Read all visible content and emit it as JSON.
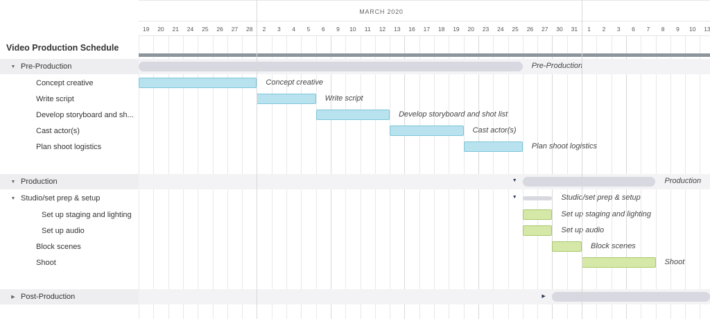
{
  "project": {
    "title": "Video Production Schedule"
  },
  "timeline": {
    "month_label": "MARCH 2020",
    "days": [
      "19",
      "20",
      "21",
      "24",
      "25",
      "26",
      "27",
      "28",
      "2",
      "3",
      "4",
      "5",
      "6",
      "9",
      "10",
      "11",
      "12",
      "13",
      "16",
      "17",
      "18",
      "19",
      "20",
      "23",
      "24",
      "25",
      "26",
      "27",
      "30",
      "31",
      "1",
      "2",
      "3",
      "6",
      "7",
      "8",
      "9",
      "10",
      "13"
    ]
  },
  "rows": [
    {
      "label": "Pre-Production",
      "kind": "group",
      "toggle": "▼",
      "bar_label": "Pre-Production",
      "start": 0,
      "end": 26
    },
    {
      "label": "Concept creative",
      "kind": "task",
      "color": "blue",
      "bar_label": "Concept creative",
      "start": 0,
      "end": 8
    },
    {
      "label": "Write script",
      "kind": "task",
      "color": "blue",
      "bar_label": "Write script",
      "start": 8,
      "end": 12
    },
    {
      "label": "Develop storyboard and sh...",
      "kind": "task",
      "color": "blue",
      "bar_label": "Develop storyboard and shot list",
      "start": 12,
      "end": 17
    },
    {
      "label": "Cast actor(s)",
      "kind": "task",
      "color": "blue",
      "bar_label": "Cast actor(s)",
      "start": 17,
      "end": 22
    },
    {
      "label": "Plan shoot logistics",
      "kind": "task",
      "color": "blue",
      "bar_label": "Plan shoot logistics",
      "start": 22,
      "end": 26
    },
    {
      "label": "Production",
      "kind": "group",
      "toggle": "▼",
      "bar_label": "Production",
      "start": 26,
      "end": 35
    },
    {
      "label": "Studio/set prep & setup",
      "kind": "subgroup",
      "toggle": "▼",
      "bar_label": "Studio/set prep & setup",
      "start": 26,
      "end": 28
    },
    {
      "label": "Set up staging and lighting",
      "kind": "task",
      "color": "green",
      "bar_label": "Set up staging and lighting",
      "start": 26,
      "end": 28
    },
    {
      "label": "Set up audio",
      "kind": "task",
      "color": "green",
      "bar_label": "Set up audio",
      "start": 26,
      "end": 28
    },
    {
      "label": "Block scenes",
      "kind": "task",
      "color": "green",
      "bar_label": "Block scenes",
      "start": 28,
      "end": 30
    },
    {
      "label": "Shoot",
      "kind": "task",
      "color": "green",
      "bar_label": "Shoot",
      "start": 30,
      "end": 35
    },
    {
      "label": "Post-Production",
      "kind": "group",
      "toggle": "▶",
      "bar_label": "",
      "start": 28,
      "end": 39
    }
  ],
  "colors": {
    "task_blue": "#b8e2ee",
    "task_green": "#d6e8a8",
    "group_bar": "#d7d8e0",
    "project_bar": "#8c959c"
  }
}
